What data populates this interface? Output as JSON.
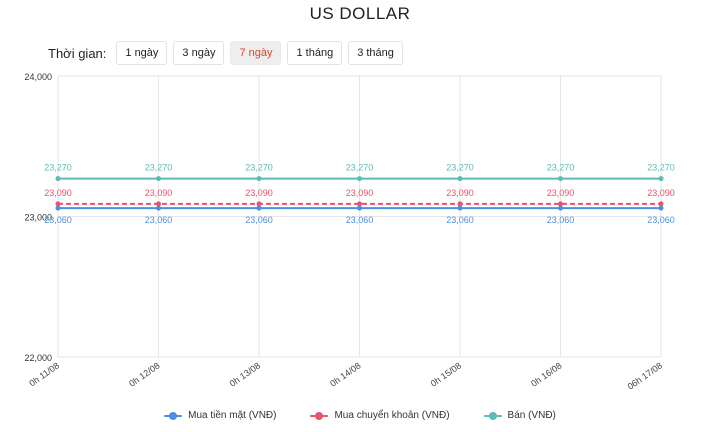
{
  "title": "US DOLLAR",
  "period": {
    "label": "Thời gian:",
    "options": [
      "1 ngày",
      "3 ngày",
      "7 ngày",
      "1 tháng",
      "3 tháng"
    ],
    "selected": "7 ngày"
  },
  "colors": {
    "accent": "#e2431e",
    "cash_buy": "#4a90e2",
    "transfer_buy": "#e8536b",
    "sell": "#5bbcb3",
    "grid": "#e6e6e6"
  },
  "chart_data": {
    "type": "line",
    "title": "US DOLLAR",
    "xlabel": "",
    "ylabel": "",
    "categories": [
      "0h 11/08",
      "0h 12/08",
      "0h 13/08",
      "0h 14/08",
      "0h 15/08",
      "0h 16/08",
      "06h 17/08"
    ],
    "ylim": [
      22000,
      24000
    ],
    "yticks": [
      "22,000",
      "23,000",
      "24,000"
    ],
    "grid": true,
    "legend_position": "bottom",
    "series": [
      {
        "name": "Mua tiền mặt (VNĐ)",
        "color": "#4a90e2",
        "dashed": false,
        "label_position": "below",
        "values": [
          23060,
          23060,
          23060,
          23060,
          23060,
          23060,
          23060
        ],
        "labels": [
          "23,060",
          "23,060",
          "23,060",
          "23,060",
          "23,060",
          "23,060",
          "23,060"
        ]
      },
      {
        "name": "Mua chuyển khoản (VNĐ)",
        "color": "#e8536b",
        "dashed": true,
        "label_position": "above",
        "values": [
          23090,
          23090,
          23090,
          23090,
          23090,
          23090,
          23090
        ],
        "labels": [
          "23,090",
          "23,090",
          "23,090",
          "23,090",
          "23,090",
          "23,090",
          "23,090"
        ]
      },
      {
        "name": "Bán (VNĐ)",
        "color": "#5bbcb3",
        "dashed": false,
        "label_position": "above",
        "values": [
          23270,
          23270,
          23270,
          23270,
          23270,
          23270,
          23270
        ],
        "labels": [
          "23,270",
          "23,270",
          "23,270",
          "23,270",
          "23,270",
          "23,270",
          "23,270"
        ]
      }
    ]
  }
}
